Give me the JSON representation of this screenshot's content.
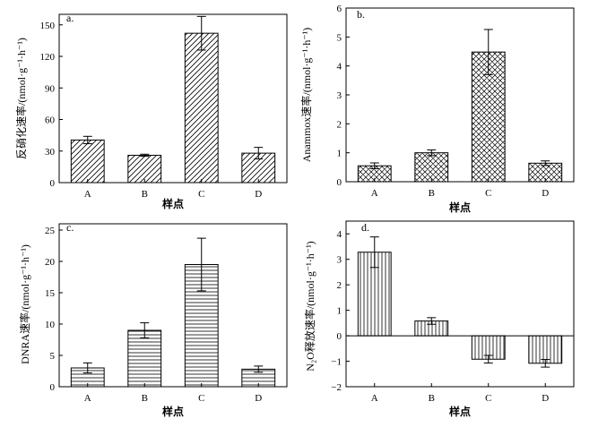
{
  "chart_data": [
    {
      "type": "bar",
      "panel_label": "a.",
      "title": "",
      "xlabel": "样点",
      "ylabel": "反硝化速率/(nmol·g⁻¹·h⁻¹)",
      "categories": [
        "A",
        "B",
        "C",
        "D"
      ],
      "values": [
        40.5,
        26,
        142,
        28
      ],
      "errors": [
        3.5,
        1,
        16,
        5.5
      ],
      "ylim": [
        0,
        160
      ],
      "yticks": [
        0,
        30,
        60,
        90,
        120,
        150
      ],
      "ytick_labels": [
        "0",
        "30",
        "60",
        "90",
        "120",
        "150"
      ],
      "pattern": "diagonal-hatch"
    },
    {
      "type": "bar",
      "panel_label": "b.",
      "title": "",
      "xlabel": "样点",
      "ylabel": "Anammox速率/(nmol·g⁻¹·h⁻¹)",
      "categories": [
        "A",
        "B",
        "C",
        "D"
      ],
      "values": [
        0.55,
        1.0,
        4.48,
        0.64
      ],
      "errors": [
        0.1,
        0.1,
        0.78,
        0.08
      ],
      "ylim": [
        0,
        6
      ],
      "yticks": [
        0,
        1,
        2,
        3,
        4,
        5,
        6
      ],
      "ytick_labels": [
        "0",
        "1",
        "2",
        "3",
        "4",
        "5",
        "6"
      ],
      "pattern": "crosshatch"
    },
    {
      "type": "bar",
      "panel_label": "c.",
      "title": "",
      "xlabel": "样点",
      "ylabel": "DNRA速率/(nmol·g⁻¹·h⁻¹)",
      "categories": [
        "A",
        "B",
        "C",
        "D"
      ],
      "values": [
        3.0,
        9.0,
        19.5,
        2.8
      ],
      "errors": [
        0.8,
        1.2,
        4.2,
        0.5
      ],
      "ylim": [
        0,
        26
      ],
      "yticks": [
        0,
        5,
        10,
        15,
        20,
        25
      ],
      "ytick_labels": [
        "0",
        "5",
        "10",
        "15",
        "20",
        "25"
      ],
      "pattern": "horizontal-lines"
    },
    {
      "type": "bar",
      "panel_label": "d.",
      "title": "",
      "xlabel": "样点",
      "ylabel": "N₂O释放速率/(nmol·g⁻¹·h⁻¹)",
      "categories": [
        "A",
        "B",
        "C",
        "D"
      ],
      "values": [
        3.28,
        0.58,
        -0.92,
        -1.08
      ],
      "errors": [
        0.6,
        0.13,
        0.15,
        0.15
      ],
      "ylim": [
        -2,
        4.5
      ],
      "yticks": [
        -2,
        -1,
        0,
        1,
        2,
        3,
        4
      ],
      "ytick_labels": [
        "−2",
        "−1",
        "0",
        "1",
        "2",
        "3",
        "4"
      ],
      "pattern": "vertical-lines"
    }
  ]
}
